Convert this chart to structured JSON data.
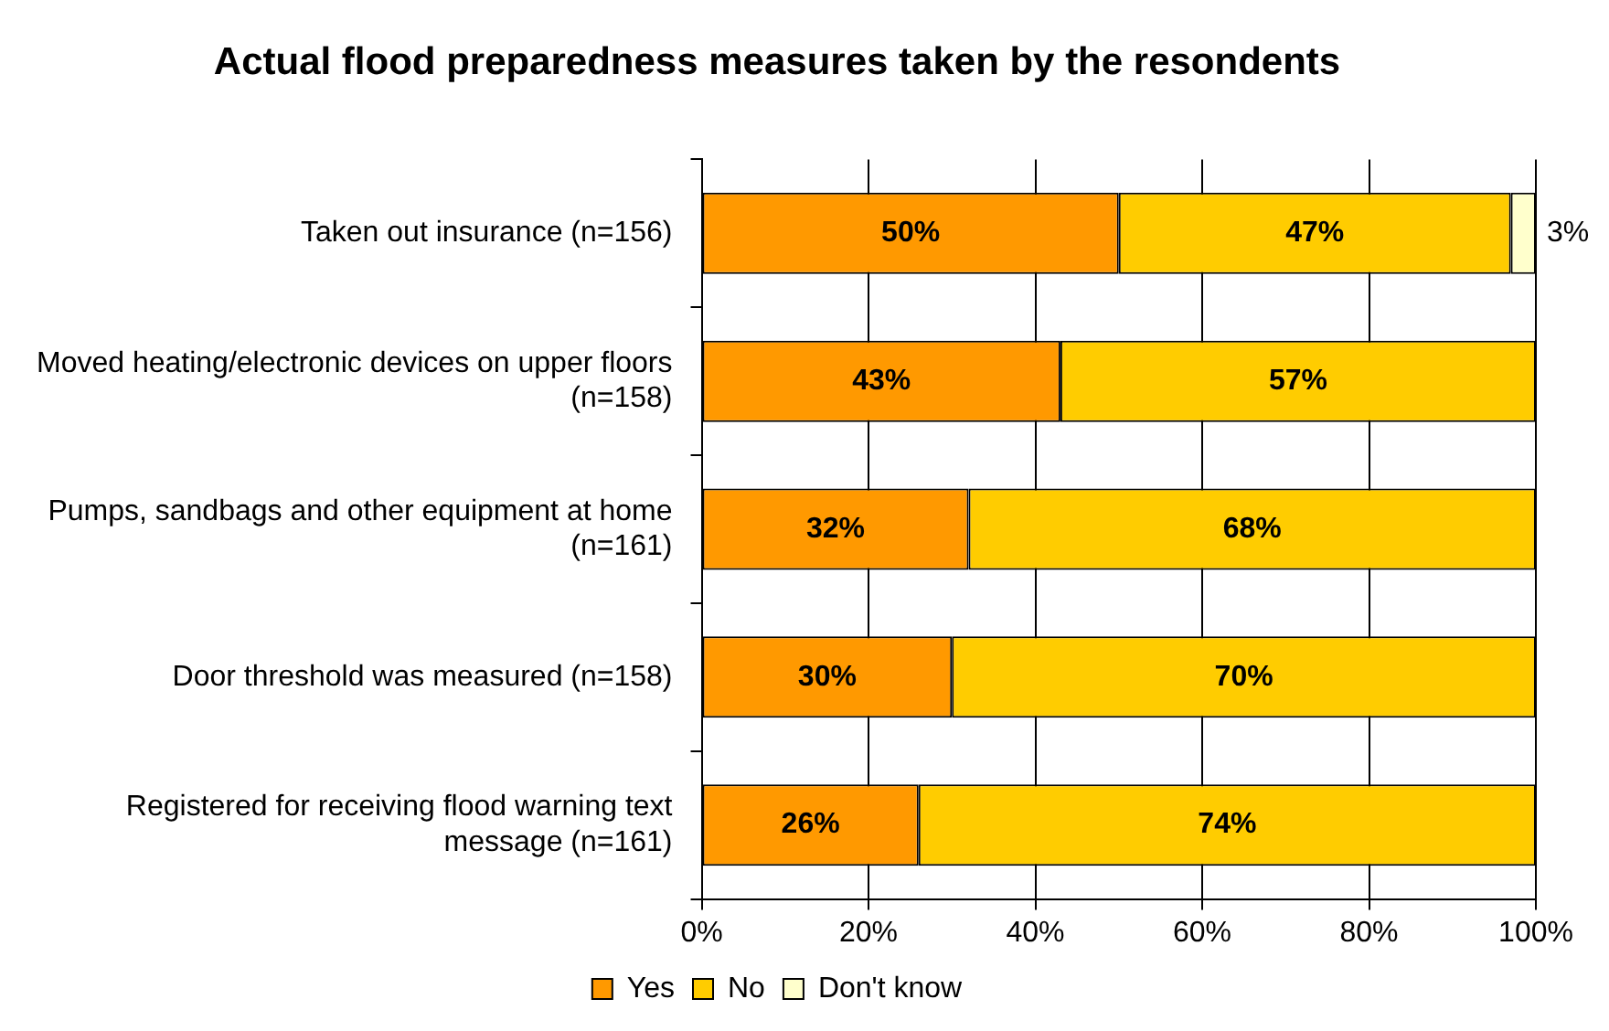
{
  "chart_data": {
    "type": "bar",
    "title": "Actual flood preparedness measures taken by the resondents",
    "orientation": "horizontal",
    "stacked": true,
    "categories": [
      "Taken out insurance (n=156)",
      "Moved heating/electronic devices on upper floors (n=158)",
      "Pumps, sandbags and other equipment at home (n=161)",
      "Door threshold was measured (n=158)",
      "Registered for receiving flood warning text message (n=161)"
    ],
    "series": [
      {
        "name": "Yes",
        "color": "#ff9900",
        "values": [
          50,
          43,
          32,
          30,
          26
        ],
        "value_labels": [
          "50%",
          "43%",
          "32%",
          "30%",
          "26%"
        ]
      },
      {
        "name": "No",
        "color": "#ffcc00",
        "values": [
          47,
          57,
          68,
          70,
          74
        ],
        "value_labels": [
          "47%",
          "57%",
          "68%",
          "70%",
          "74%"
        ]
      },
      {
        "name": "Don't know",
        "color": "#ffffcc",
        "values": [
          3,
          0,
          0,
          0,
          0
        ],
        "value_labels": [
          "3%",
          null,
          null,
          null,
          null
        ]
      }
    ],
    "xlim": [
      0,
      100
    ],
    "xticks": [
      {
        "value": 0,
        "label": "0%"
      },
      {
        "value": 20,
        "label": "20%"
      },
      {
        "value": 40,
        "label": "40%"
      },
      {
        "value": 60,
        "label": "60%"
      },
      {
        "value": 80,
        "label": "80%"
      },
      {
        "value": 100,
        "label": "100%"
      }
    ],
    "grid": "x",
    "legend": "bottom"
  }
}
